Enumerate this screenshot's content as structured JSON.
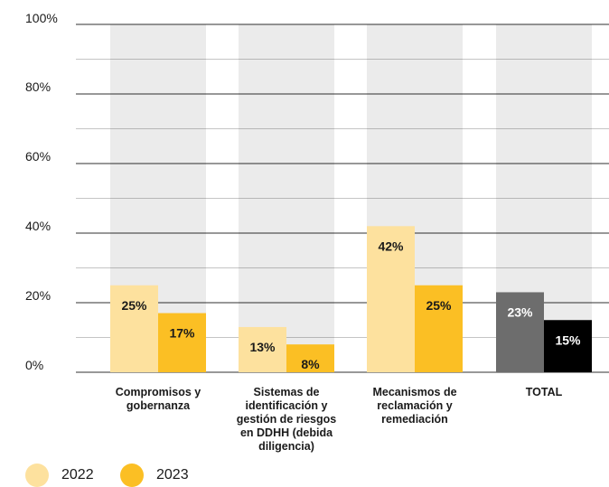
{
  "chart_data": {
    "type": "bar",
    "categories": [
      "Compromisos y gobernanza",
      "Sistemas de identificación y gestión de riesgos en DDHH (debida diligencia)",
      "Mecanismos de reclamación y remediación",
      "TOTAL"
    ],
    "category_label_lines": [
      [
        "Compromisos y",
        "gobernanza"
      ],
      [
        "Sistemas de",
        "identificación y",
        "gestión de riesgos",
        "en DDHH (debida",
        "diligencia)"
      ],
      [
        "Mecanismos de",
        "reclamación y",
        "remediación"
      ],
      [
        "TOTAL"
      ]
    ],
    "series": [
      {
        "name": "2022",
        "values": [
          25,
          13,
          42,
          23
        ],
        "data_labels": [
          "25%",
          "13%",
          "42%",
          "23%"
        ]
      },
      {
        "name": "2023",
        "values": [
          17,
          8,
          25,
          15
        ],
        "data_labels": [
          "17%",
          "8%",
          "25%",
          "15%"
        ]
      }
    ],
    "y_ticks": [
      "0%",
      "20%",
      "40%",
      "60%",
      "80%",
      "100%"
    ],
    "ylim": [
      0,
      100
    ],
    "background_bar_value": 100,
    "grid": true,
    "legend_position": "bottom-left",
    "colors": {
      "series_2022": "#fde19e",
      "series_2023": "#fbbf24",
      "total_2022": "#6d6d6d",
      "total_2023": "#000000",
      "background_bar": "#ebebeb",
      "gridline": "#1a1a1a"
    }
  },
  "legend": {
    "items": [
      {
        "label": "2022",
        "color": "#fde19e"
      },
      {
        "label": "2023",
        "color": "#fbbf24"
      }
    ]
  }
}
